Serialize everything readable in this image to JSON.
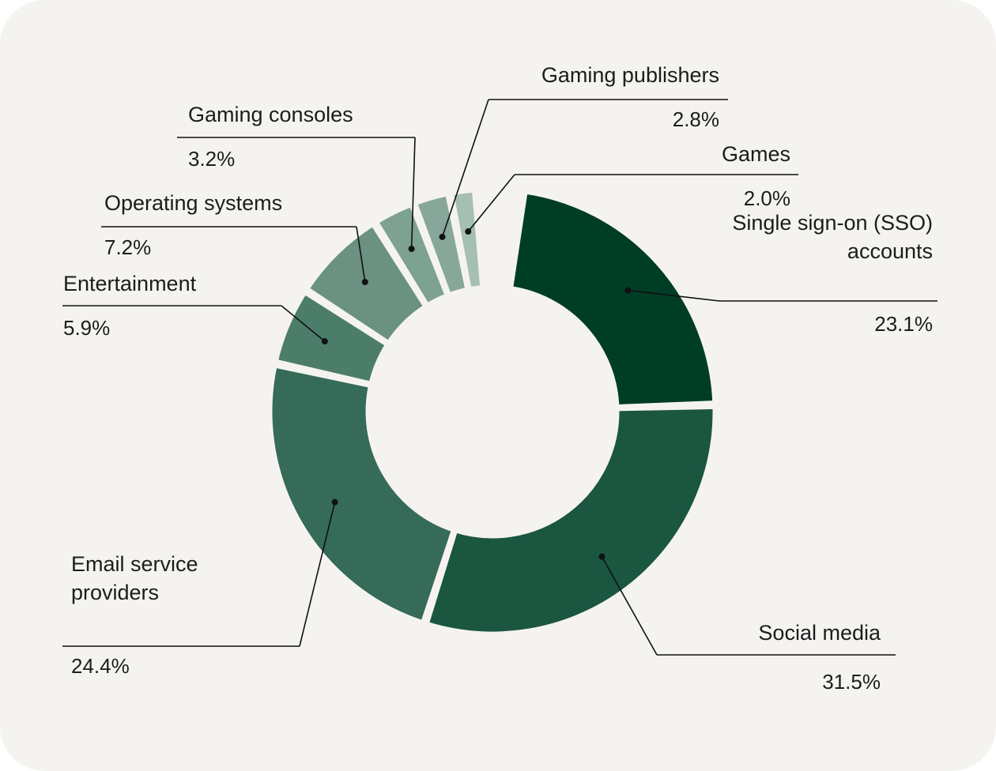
{
  "chart_data": {
    "type": "pie",
    "variant": "donut",
    "title": "",
    "legend": "none",
    "slices": [
      {
        "label_lines": [
          "Single sign-on (SSO)",
          "accounts"
        ],
        "value": 23.1,
        "value_label": "23.1%",
        "color": "#003d26"
      },
      {
        "label_lines": [
          "Social media"
        ],
        "value": 31.5,
        "value_label": "31.5%",
        "color": "#1b5641"
      },
      {
        "label_lines": [
          "Email service",
          "providers"
        ],
        "value": 24.4,
        "value_label": "24.4%",
        "color": "#356b58"
      },
      {
        "label_lines": [
          "Entertainment"
        ],
        "value": 5.9,
        "value_label": "5.9%",
        "color": "#4c7d6b"
      },
      {
        "label_lines": [
          "Operating systems"
        ],
        "value": 7.2,
        "value_label": "7.2%",
        "color": "#6a9181"
      },
      {
        "label_lines": [
          "Gaming consoles"
        ],
        "value": 3.2,
        "value_label": "3.2%",
        "color": "#7da291"
      },
      {
        "label_lines": [
          "Gaming publishers"
        ],
        "value": 2.8,
        "value_label": "2.8%",
        "color": "#86a799"
      },
      {
        "label_lines": [
          "Games"
        ],
        "value": 2.0,
        "value_label": "2.0%",
        "color": "#a6bfb4"
      }
    ]
  }
}
